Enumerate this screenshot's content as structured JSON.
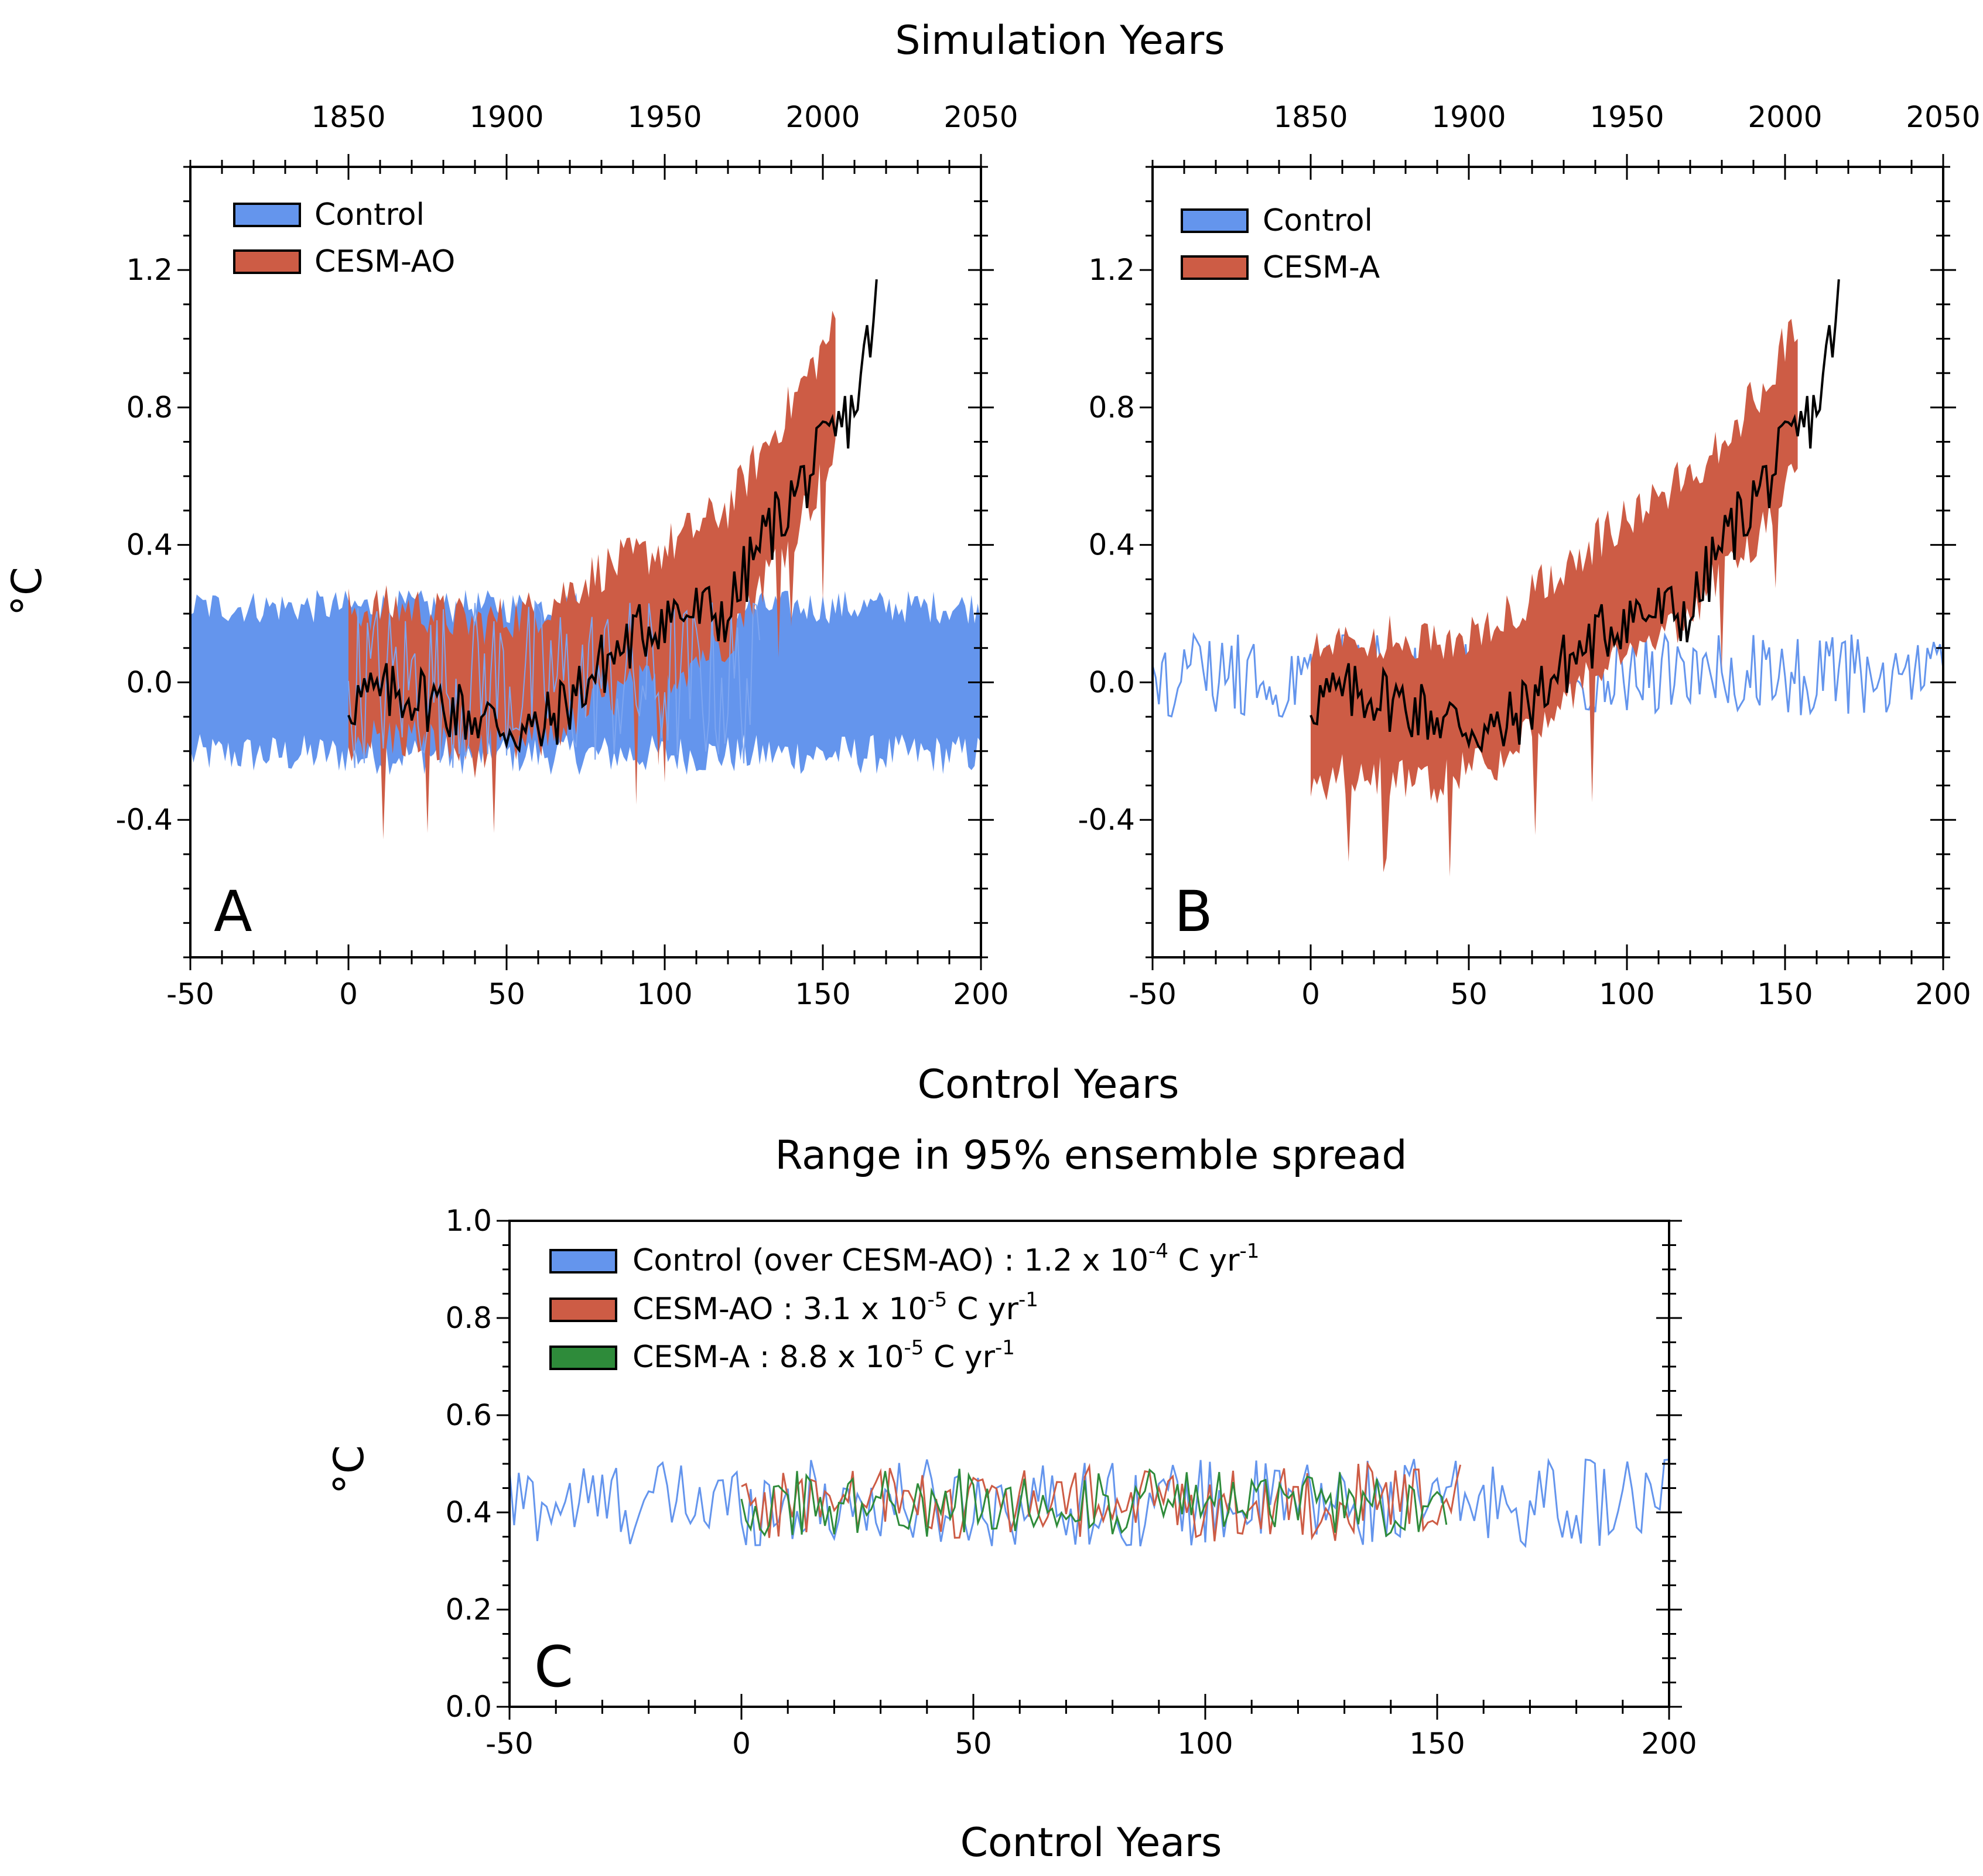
{
  "figure": {
    "top_title": "Simulation Years",
    "colors": {
      "control": "#6495ED",
      "cesm_ao": "#CD5C45",
      "cesm_a": "#CD5C45",
      "green": "#2E8B3A",
      "observed": "#000000"
    }
  },
  "chart_data": [
    {
      "panel": "A",
      "type": "area",
      "xlabel": "Control Years",
      "ylabel": "°C",
      "xlim": [
        -50,
        200
      ],
      "ylim": [
        -0.8,
        1.5
      ],
      "xticks": [
        -50,
        0,
        50,
        100,
        150,
        200
      ],
      "xtick_labels": [
        "-50",
        "0",
        "50",
        "100",
        "150",
        "200"
      ],
      "yticks": [
        -0.4,
        0.0,
        0.4,
        0.8,
        1.2
      ],
      "ytick_labels": [
        "-0.4",
        "0.0",
        "0.4",
        "0.8",
        "1.2"
      ],
      "top_axis": {
        "title": "Simulation Years",
        "ticks": [
          1850,
          1900,
          1950,
          2000,
          2050
        ],
        "tick_labels": [
          "1850",
          "1900",
          "1950",
          "2000",
          "2050"
        ],
        "offset": 1850
      },
      "legend": [
        "Control",
        "CESM-AO"
      ],
      "series": [
        {
          "name": "Control",
          "kind": "band",
          "x_start": -50,
          "x_end": 200,
          "lower": -0.21,
          "upper": 0.22
        },
        {
          "name": "CESM-AO",
          "kind": "band",
          "x_start": 0,
          "x_end": 154,
          "center": [
            [
              0,
              0.02
            ],
            [
              20,
              0.03
            ],
            [
              40,
              -0.02
            ],
            [
              60,
              0.02
            ],
            [
              80,
              0.14
            ],
            [
              100,
              0.2
            ],
            [
              120,
              0.32
            ],
            [
              140,
              0.62
            ],
            [
              154,
              0.85
            ]
          ],
          "half_width": 0.19
        },
        {
          "name": "Observed",
          "kind": "line",
          "x_start": 0,
          "x_end": 167,
          "anchors": [
            [
              0,
              -0.05
            ],
            [
              20,
              -0.03
            ],
            [
              40,
              -0.1
            ],
            [
              60,
              -0.15
            ],
            [
              80,
              0.05
            ],
            [
              100,
              0.2
            ],
            [
              120,
              0.2
            ],
            [
              130,
              0.4
            ],
            [
              145,
              0.6
            ],
            [
              160,
              0.8
            ],
            [
              167,
              1.1
            ]
          ]
        }
      ]
    },
    {
      "panel": "B",
      "type": "area",
      "xlabel": "",
      "ylabel": "",
      "xlim": [
        -50,
        200
      ],
      "ylim": [
        -0.8,
        1.5
      ],
      "xticks": [
        -50,
        0,
        50,
        100,
        150,
        200
      ],
      "xtick_labels": [
        "-50",
        "0",
        "50",
        "100",
        "150",
        "200"
      ],
      "yticks": [
        -0.4,
        0.0,
        0.4,
        0.8,
        1.2
      ],
      "ytick_labels": [
        "-0.4",
        "0.0",
        "0.4",
        "0.8",
        "1.2"
      ],
      "top_axis": {
        "title": "",
        "ticks": [
          1850,
          1900,
          1950,
          2000,
          2050
        ],
        "tick_labels": [
          "1850",
          "1900",
          "1950",
          "2000",
          "2050"
        ],
        "offset": 1850
      },
      "legend": [
        "Control",
        "CESM-A"
      ],
      "series": [
        {
          "name": "Control",
          "kind": "line",
          "x_start": -50,
          "x_end": 200,
          "mean": 0.02,
          "amplitude": 0.12
        },
        {
          "name": "CESM-A",
          "kind": "band",
          "x_start": 0,
          "x_end": 154,
          "center": [
            [
              0,
              -0.08
            ],
            [
              20,
              -0.06
            ],
            [
              40,
              -0.1
            ],
            [
              60,
              -0.02
            ],
            [
              80,
              0.15
            ],
            [
              100,
              0.28
            ],
            [
              120,
              0.4
            ],
            [
              140,
              0.62
            ],
            [
              154,
              0.85
            ]
          ],
          "half_width": 0.2
        },
        {
          "name": "Observed",
          "kind": "line",
          "x_start": 0,
          "x_end": 167,
          "anchors": [
            [
              0,
              -0.05
            ],
            [
              20,
              -0.03
            ],
            [
              40,
              -0.1
            ],
            [
              60,
              -0.15
            ],
            [
              80,
              0.05
            ],
            [
              100,
              0.2
            ],
            [
              120,
              0.2
            ],
            [
              130,
              0.4
            ],
            [
              145,
              0.6
            ],
            [
              160,
              0.8
            ],
            [
              167,
              1.1
            ]
          ]
        }
      ]
    },
    {
      "panel": "C",
      "type": "line",
      "title": "Range in 95% ensemble spread",
      "xlabel": "Control Years",
      "ylabel": "°C",
      "xlim": [
        -50,
        200
      ],
      "ylim": [
        0.0,
        1.0
      ],
      "xticks": [
        -50,
        0,
        50,
        100,
        150,
        200
      ],
      "xtick_labels": [
        "-50",
        "0",
        "50",
        "100",
        "150",
        "200"
      ],
      "yticks": [
        0.0,
        0.2,
        0.4,
        0.6,
        0.8,
        1.0
      ],
      "ytick_labels": [
        "0.0",
        "0.2",
        "0.4",
        "0.6",
        "0.8",
        "1.0"
      ],
      "legend": [
        {
          "label": "Control (over CESM-AO) : 1.2 x 10",
          "exp": "-4",
          "tail": " C yr",
          "tail_exp": "-1",
          "color_key": "control"
        },
        {
          "label": "CESM-AO : 3.1 x 10",
          "exp": "-5",
          "tail": " C yr",
          "tail_exp": "-1",
          "color_key": "cesm_ao"
        },
        {
          "label": "CESM-A : 8.8 x 10",
          "exp": "-5",
          "tail": " C yr",
          "tail_exp": "-1",
          "color_key": "green"
        }
      ],
      "series": [
        {
          "name": "Control",
          "x_start": -50,
          "x_end": 200,
          "mean": 0.42,
          "amplitude": 0.09
        },
        {
          "name": "CESM-AO",
          "x_start": 0,
          "x_end": 155,
          "mean": 0.42,
          "amplitude": 0.08
        },
        {
          "name": "CESM-A",
          "x_start": 0,
          "x_end": 152,
          "mean": 0.42,
          "amplitude": 0.07
        }
      ]
    }
  ]
}
